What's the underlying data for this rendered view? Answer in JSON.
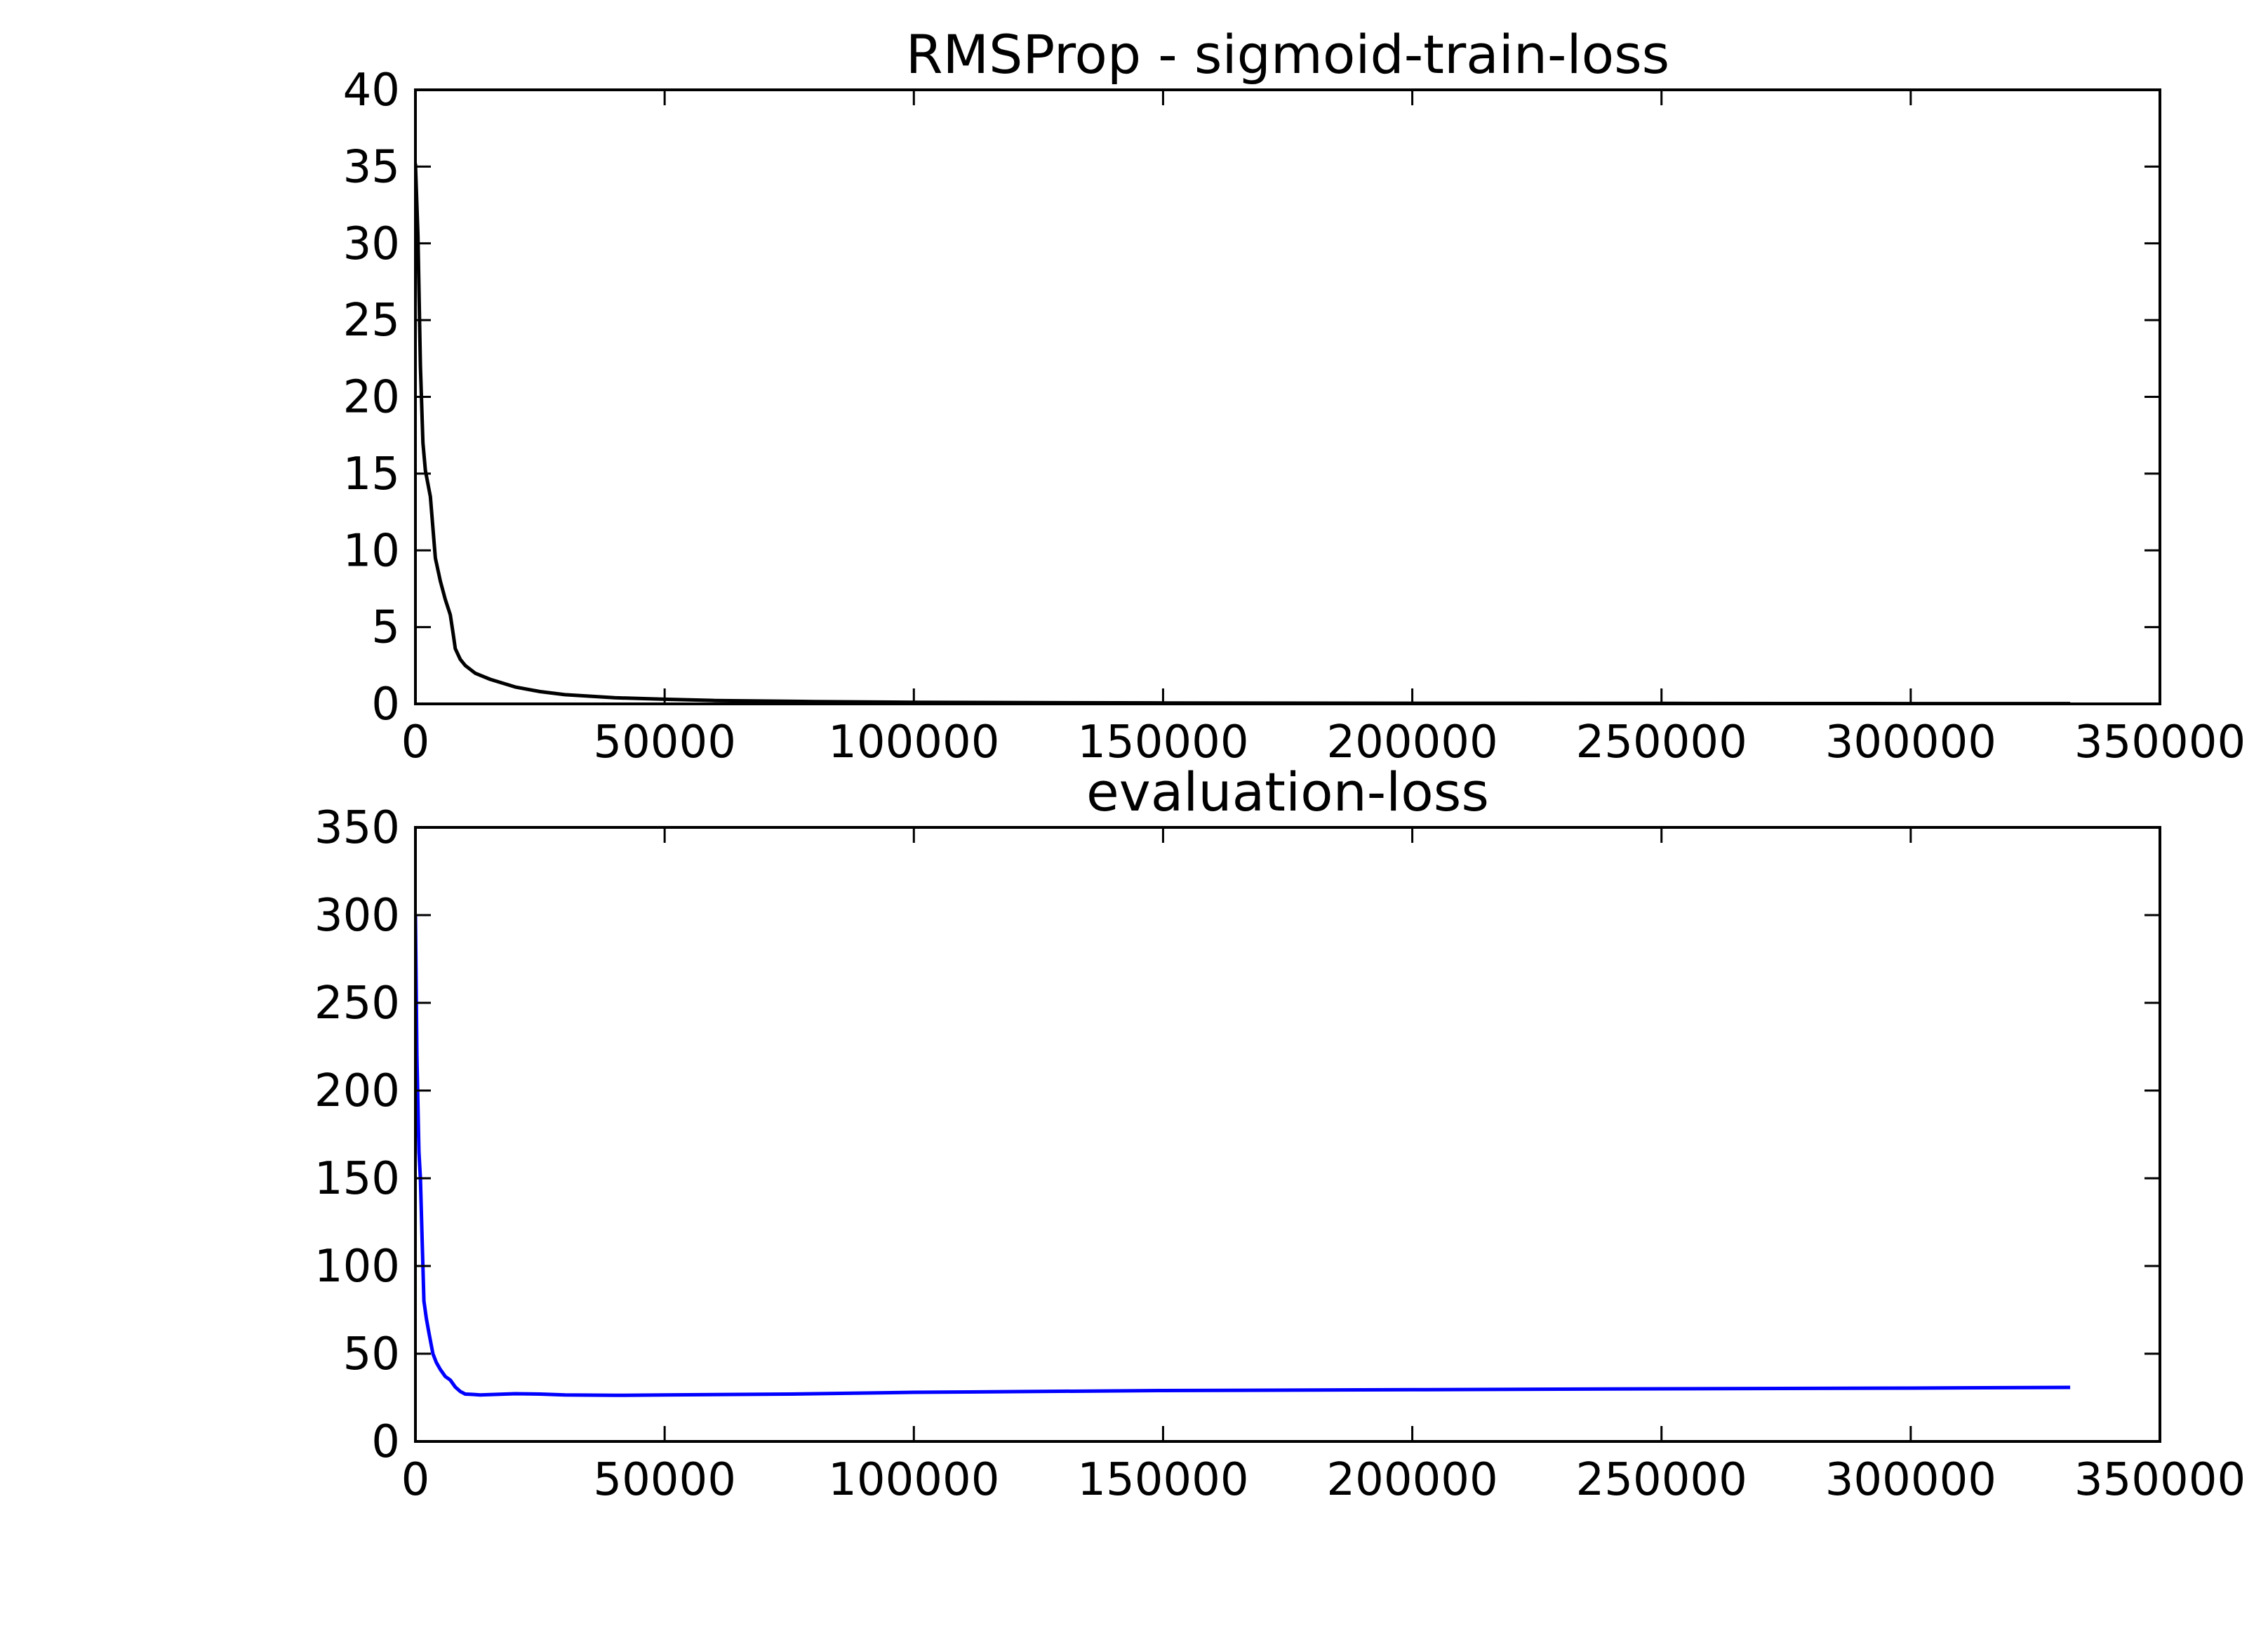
{
  "chart_data": [
    {
      "type": "line",
      "title": "RMSProp - sigmoid-train-loss",
      "xlabel": "",
      "ylabel": "",
      "xlim": [
        0,
        350000
      ],
      "ylim": [
        0,
        40
      ],
      "xticks": [
        "0",
        "50000",
        "100000",
        "150000",
        "200000",
        "250000",
        "300000",
        "350000"
      ],
      "yticks": [
        "0",
        "5",
        "10",
        "15",
        "20",
        "25",
        "30",
        "35",
        "40"
      ],
      "grid": false,
      "series": [
        {
          "color": "#000000",
          "x": [
            0,
            500,
            1000,
            1500,
            2000,
            3000,
            4000,
            5000,
            6000,
            7000,
            7600,
            8000,
            9000,
            10000,
            12000,
            15000,
            20000,
            25000,
            30000,
            40000,
            50000,
            60000,
            80000,
            100000,
            150000,
            200000,
            250000,
            300000,
            332000
          ],
          "y": [
            35.2,
            30.5,
            22.0,
            17.0,
            15.2,
            13.5,
            9.5,
            8.0,
            6.8,
            5.8,
            4.5,
            3.6,
            2.9,
            2.5,
            2.0,
            1.6,
            1.1,
            0.8,
            0.6,
            0.4,
            0.3,
            0.22,
            0.15,
            0.1,
            0.06,
            0.04,
            0.03,
            0.02,
            0.02
          ]
        }
      ]
    },
    {
      "type": "line",
      "title": "evaluation-loss",
      "xlabel": "",
      "ylabel": "",
      "xlim": [
        0,
        350000
      ],
      "ylim": [
        0,
        350
      ],
      "xticks": [
        "0",
        "50000",
        "100000",
        "150000",
        "200000",
        "250000",
        "300000",
        "350000"
      ],
      "yticks": [
        "0",
        "50",
        "100",
        "150",
        "200",
        "250",
        "300",
        "350"
      ],
      "grid": false,
      "series": [
        {
          "color": "#0000ff",
          "x": [
            0,
            300,
            700,
            1000,
            1300,
            1700,
            2200,
            2700,
            3500,
            4200,
            5000,
            6000,
            7000,
            8000,
            9000,
            10000,
            11500,
            13000,
            16000,
            20000,
            25000,
            30000,
            40000,
            50000,
            75000,
            100000,
            150000,
            200000,
            250000,
            300000,
            332000
          ],
          "y": [
            300,
            220,
            165,
            150,
            120,
            80,
            70,
            62,
            50,
            45,
            41,
            37,
            35,
            31,
            28.5,
            27,
            26.8,
            26.5,
            26.8,
            27.2,
            27,
            26.5,
            26.3,
            26.5,
            27,
            28,
            29,
            29.5,
            30,
            30.4,
            30.8
          ]
        }
      ]
    }
  ]
}
